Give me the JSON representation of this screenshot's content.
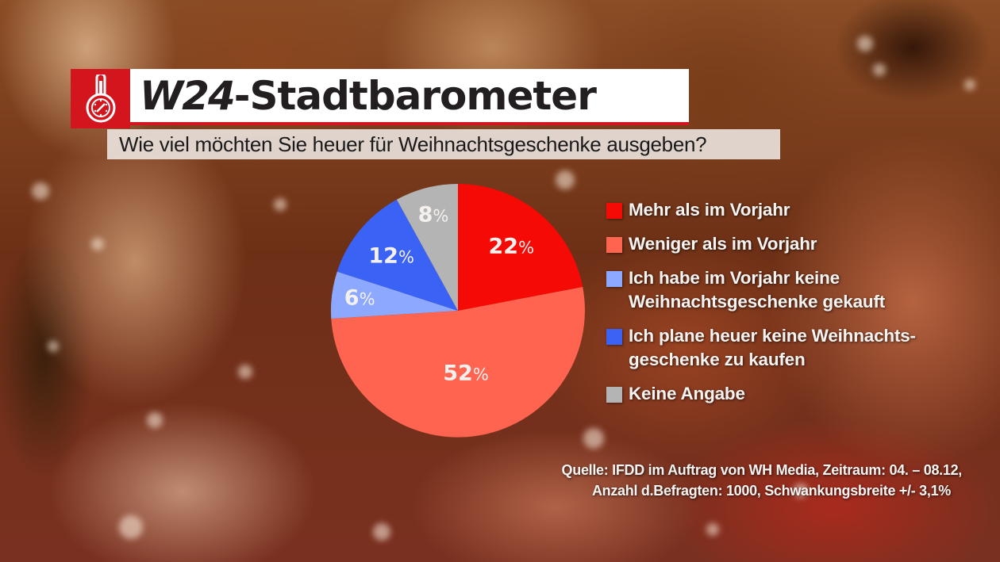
{
  "header": {
    "brand": "W24",
    "title_rest": "-Stadtbarometer",
    "icon": "thermometer-gauge-icon",
    "subtitle": "Wie viel möchten Sie heuer für Weihnachtsgeschenke ausgeben?"
  },
  "colors": {
    "header_red": "#d3151e",
    "mehr": "#f50a05",
    "weniger": "#ff6450",
    "keine_vorjahr": "#8ca8ff",
    "keine_heuer": "#3a63f5",
    "keine_angabe": "#b4b4b4"
  },
  "chart_data": {
    "type": "pie",
    "title": "Wie viel möchten Sie heuer für Weihnachtsgeschenke ausgeben?",
    "start_angle": "12 o'clock, clockwise",
    "legend_position": "right",
    "categories": [
      "Mehr als im Vorjahr",
      "Weniger als im Vorjahr",
      "Ich habe im Vorjahr keine Weihnachtsgeschenke gekauft",
      "Ich plane heuer keine Weihnachtsgeschenke zu kaufen",
      "Keine Angabe"
    ],
    "values": [
      22,
      52,
      6,
      12,
      8
    ],
    "unit": "%",
    "colors": [
      "#f50a05",
      "#ff6450",
      "#8ca8ff",
      "#3a63f5",
      "#b4b4b4"
    ],
    "data_labels": [
      "22%",
      "52%",
      "6%",
      "12%",
      "8%"
    ]
  },
  "legend": {
    "items": [
      {
        "lines": [
          "Mehr als im Vorjahr"
        ],
        "color": "#f50a05"
      },
      {
        "lines": [
          "Weniger als im Vorjahr"
        ],
        "color": "#ff6450"
      },
      {
        "lines": [
          "Ich habe im Vorjahr keine",
          "Weihnachtsgeschenke gekauft"
        ],
        "color": "#8ca8ff"
      },
      {
        "lines": [
          "Ich plane heuer keine Weihnachts-",
          "geschenke zu kaufen"
        ],
        "color": "#3a63f5"
      },
      {
        "lines": [
          "Keine Angabe"
        ],
        "color": "#b4b4b4"
      }
    ]
  },
  "source": {
    "line1": "Quelle: IFDD im Auftrag von WH Media, Zeitraum: 04. – 08.12,",
    "line2": "Anzahl d.Befragten: 1000, Schwankungsbreite +/- 3,1%"
  }
}
